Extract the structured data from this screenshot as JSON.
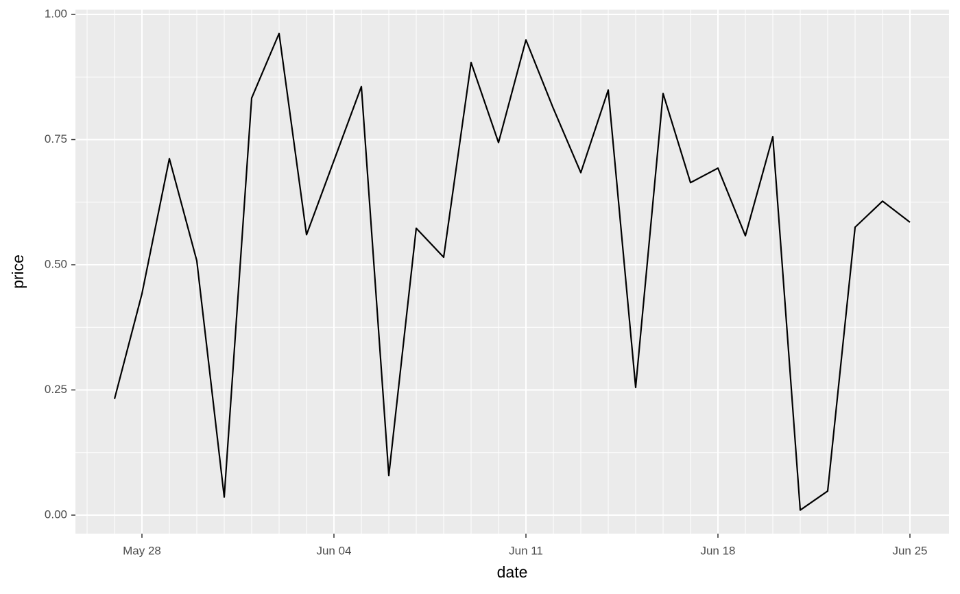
{
  "chart_data": {
    "type": "line",
    "x_label": "date",
    "y_label": "price",
    "x": [
      "May 27",
      "May 28",
      "May 29",
      "May 30",
      "May 31",
      "Jun 01",
      "Jun 02",
      "Jun 03",
      "Jun 04",
      "Jun 05",
      "Jun 06",
      "Jun 07",
      "Jun 08",
      "Jun 09",
      "Jun 10",
      "Jun 11",
      "Jun 12",
      "Jun 13",
      "Jun 14",
      "Jun 15",
      "Jun 16",
      "Jun 17",
      "Jun 18",
      "Jun 19",
      "Jun 20",
      "Jun 21",
      "Jun 22",
      "Jun 23",
      "Jun 24",
      "Jun 25"
    ],
    "values": [
      0.232,
      0.442,
      0.712,
      0.508,
      0.036,
      0.833,
      0.962,
      0.56,
      0.708,
      0.856,
      0.079,
      0.573,
      0.515,
      0.904,
      0.744,
      0.949,
      0.812,
      0.684,
      0.849,
      0.255,
      0.842,
      0.664,
      0.693,
      0.558,
      0.756,
      0.01,
      0.048,
      0.575,
      0.627,
      0.585
    ],
    "color": "#000000",
    "xticks": [
      "May 28",
      "Jun 04",
      "Jun 11",
      "Jun 18",
      "Jun 25"
    ],
    "ylim": [
      -0.037,
      1.0096
    ],
    "yticks": [
      {
        "value": 0,
        "label": "0.00"
      },
      {
        "value": 0.25,
        "label": "0.25"
      },
      {
        "value": 0.5,
        "label": "0.50"
      },
      {
        "value": 0.75,
        "label": "0.75"
      },
      {
        "value": 1,
        "label": "1.00"
      }
    ],
    "grid": true
  }
}
